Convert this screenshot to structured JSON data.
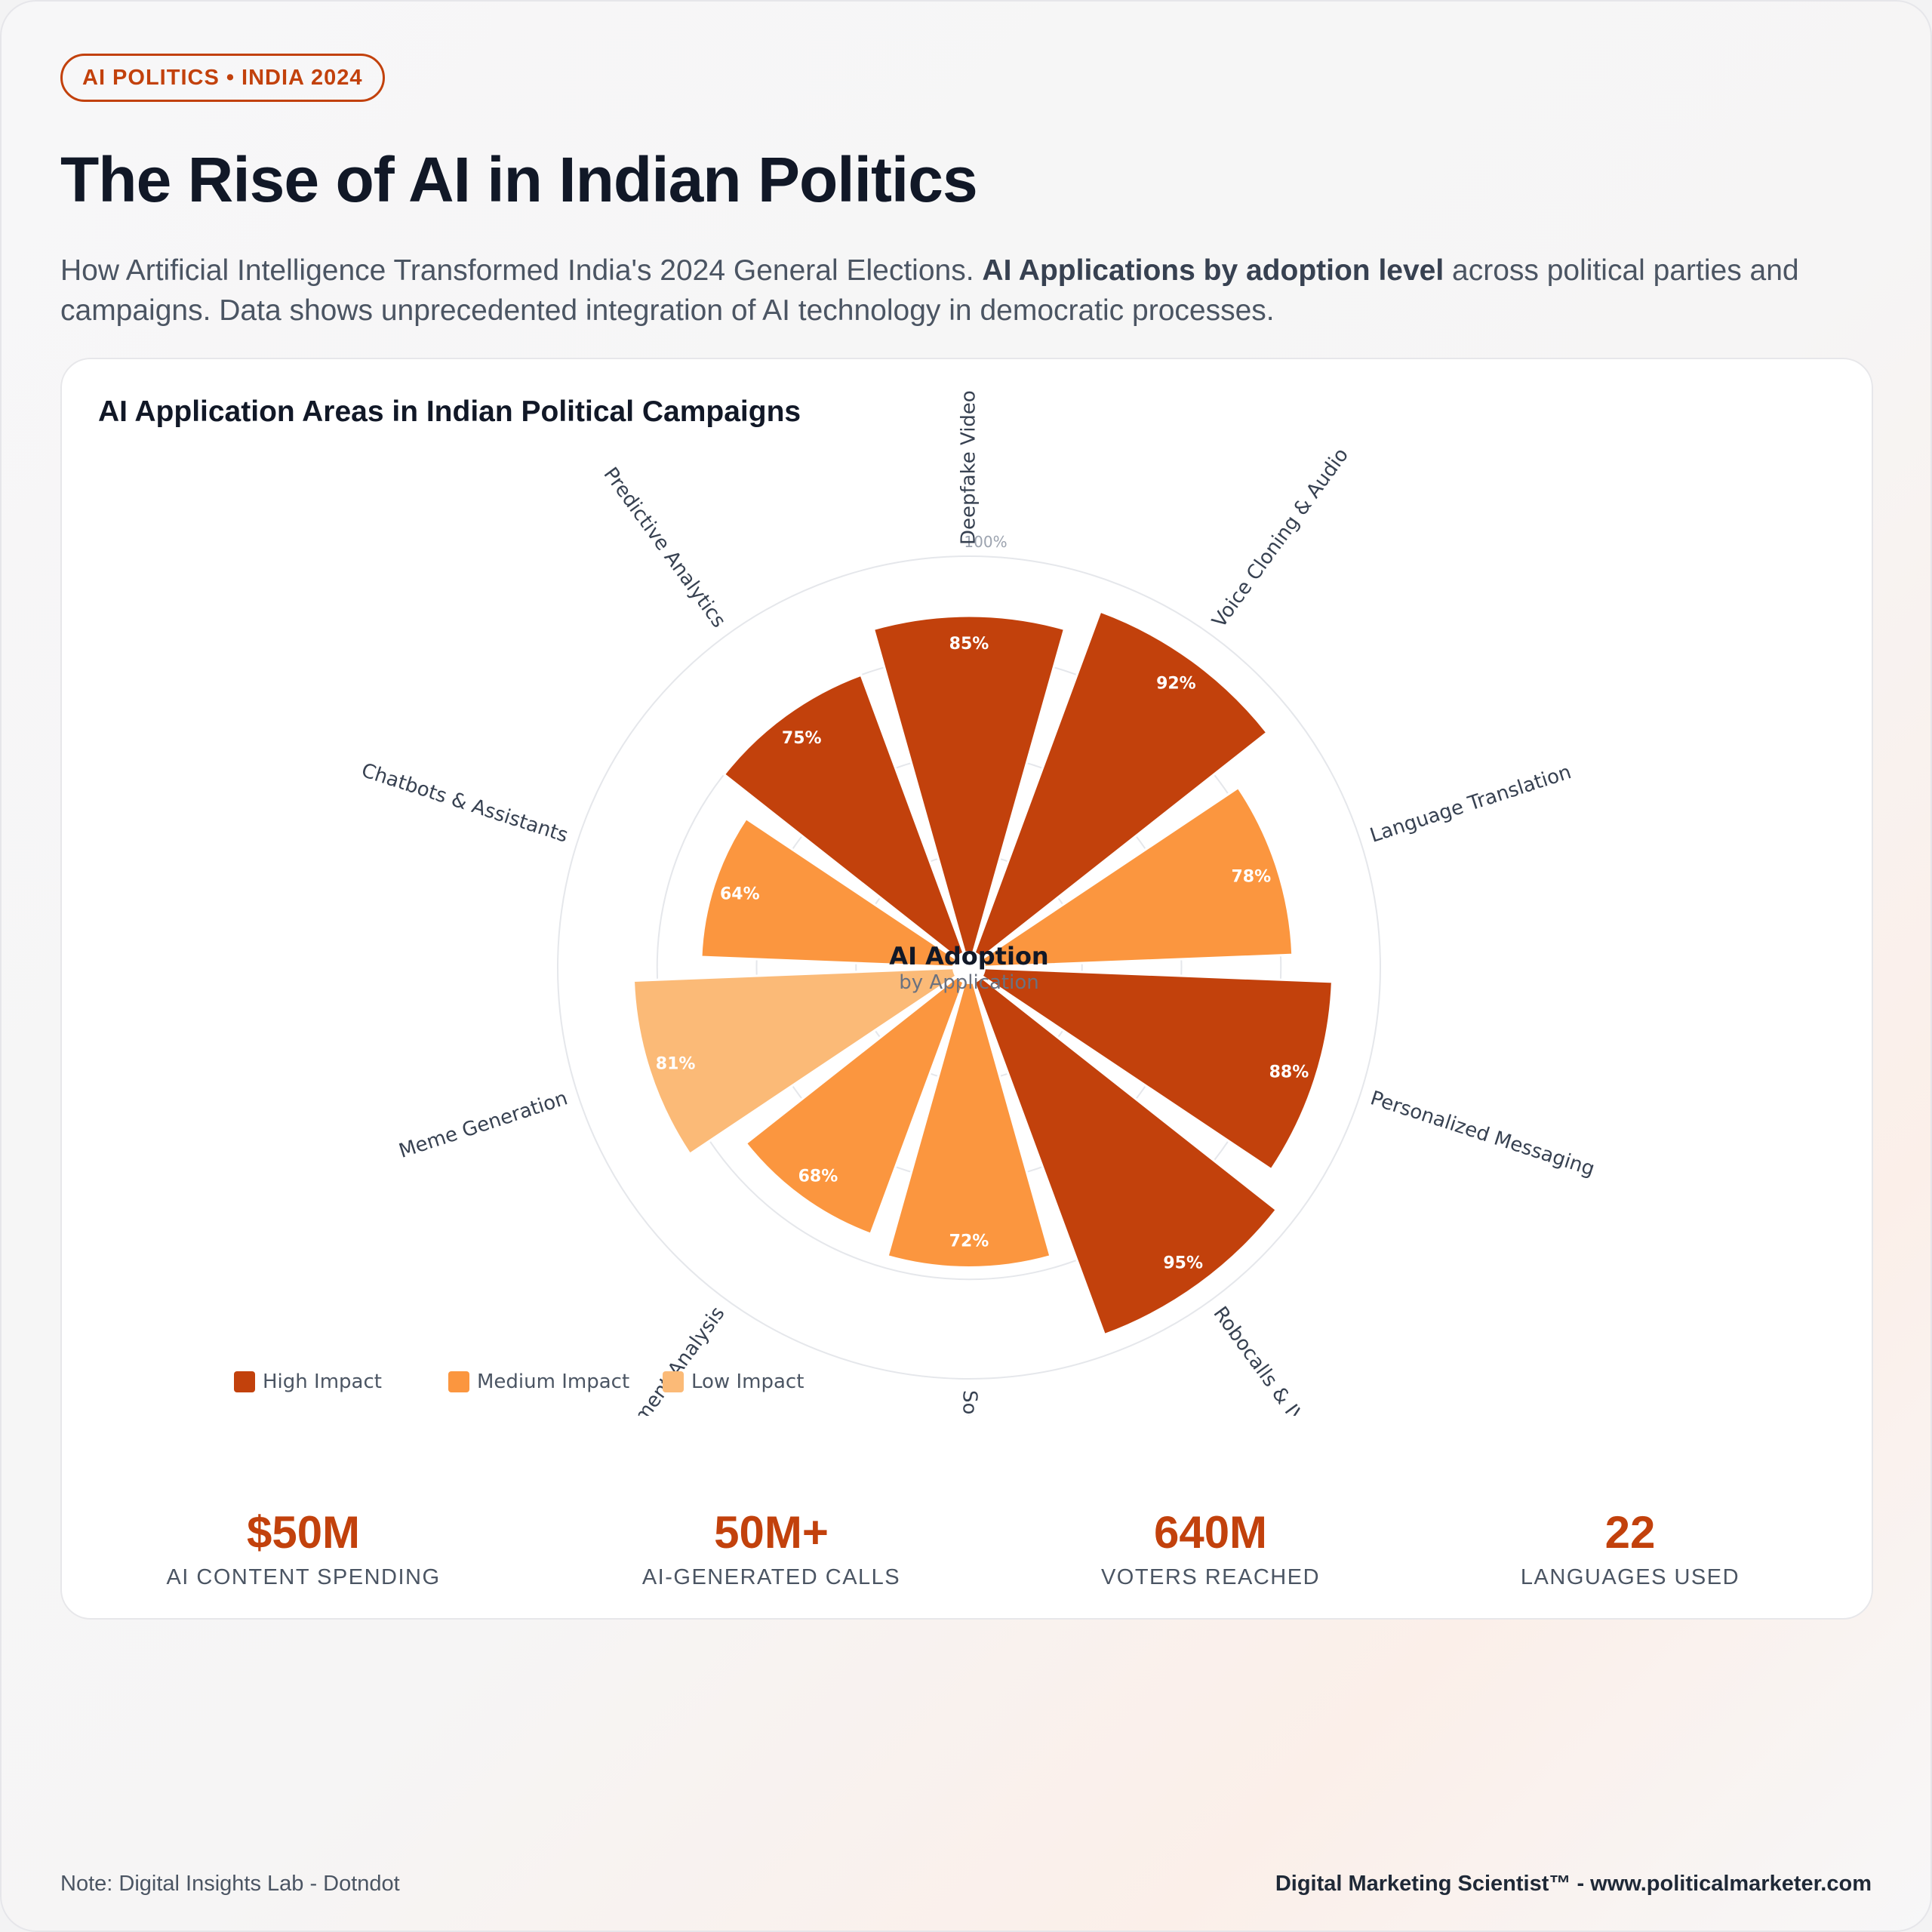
{
  "badge": "AI POLITICS • INDIA 2024",
  "title": "The Rise of AI in Indian Politics",
  "subtitle": {
    "part1": "How Artificial Intelligence Transformed India's 2024 General Elections. ",
    "bold": "AI Applications by adoption level",
    "part2": " across political parties and campaigns. Data shows unprecedented integration of AI technology in democratic processes."
  },
  "chart_title": "AI Application Areas in Indian Political Campaigns",
  "chart_data": {
    "type": "polar-bar",
    "center_title": "AI Adoption",
    "center_subtitle": "by Application",
    "rlim": [
      0,
      100
    ],
    "radial_tick_label": "100%",
    "categories": [
      "Deepfake Video",
      "Voice Cloning & Audio",
      "Language Translation",
      "Personalized Messaging",
      "Robocalls & IVR",
      "Social Media Bots",
      "Sentiment Analysis",
      "Meme Generation",
      "Chatbots & Assistants",
      "Predictive Analytics"
    ],
    "values": [
      85,
      92,
      78,
      88,
      95,
      72,
      68,
      81,
      64,
      75
    ],
    "value_labels": [
      "85%",
      "92%",
      "78%",
      "88%",
      "95%",
      "72%",
      "68%",
      "81%",
      "64%",
      "75%"
    ],
    "impact": [
      "High Impact",
      "High Impact",
      "Medium Impact",
      "High Impact",
      "High Impact",
      "Medium Impact",
      "Medium Impact",
      "Low Impact",
      "Medium Impact",
      "High Impact"
    ],
    "legend": [
      {
        "name": "High Impact",
        "color": "#c2410c"
      },
      {
        "name": "Medium Impact",
        "color": "#fb963f"
      },
      {
        "name": "Low Impact",
        "color": "#fbba77"
      }
    ]
  },
  "stats": [
    {
      "value": "$50M",
      "label": "AI CONTENT SPENDING"
    },
    {
      "value": "50M+",
      "label": "AI-GENERATED CALLS"
    },
    {
      "value": "640M",
      "label": "VOTERS REACHED"
    },
    {
      "value": "22",
      "label": "LANGUAGES USED"
    }
  ],
  "footer": {
    "note": "Note: Digital Insights Lab - Dotndot",
    "brand": "Digital Marketing Scientist™ - www.politicalmarketer.com"
  }
}
